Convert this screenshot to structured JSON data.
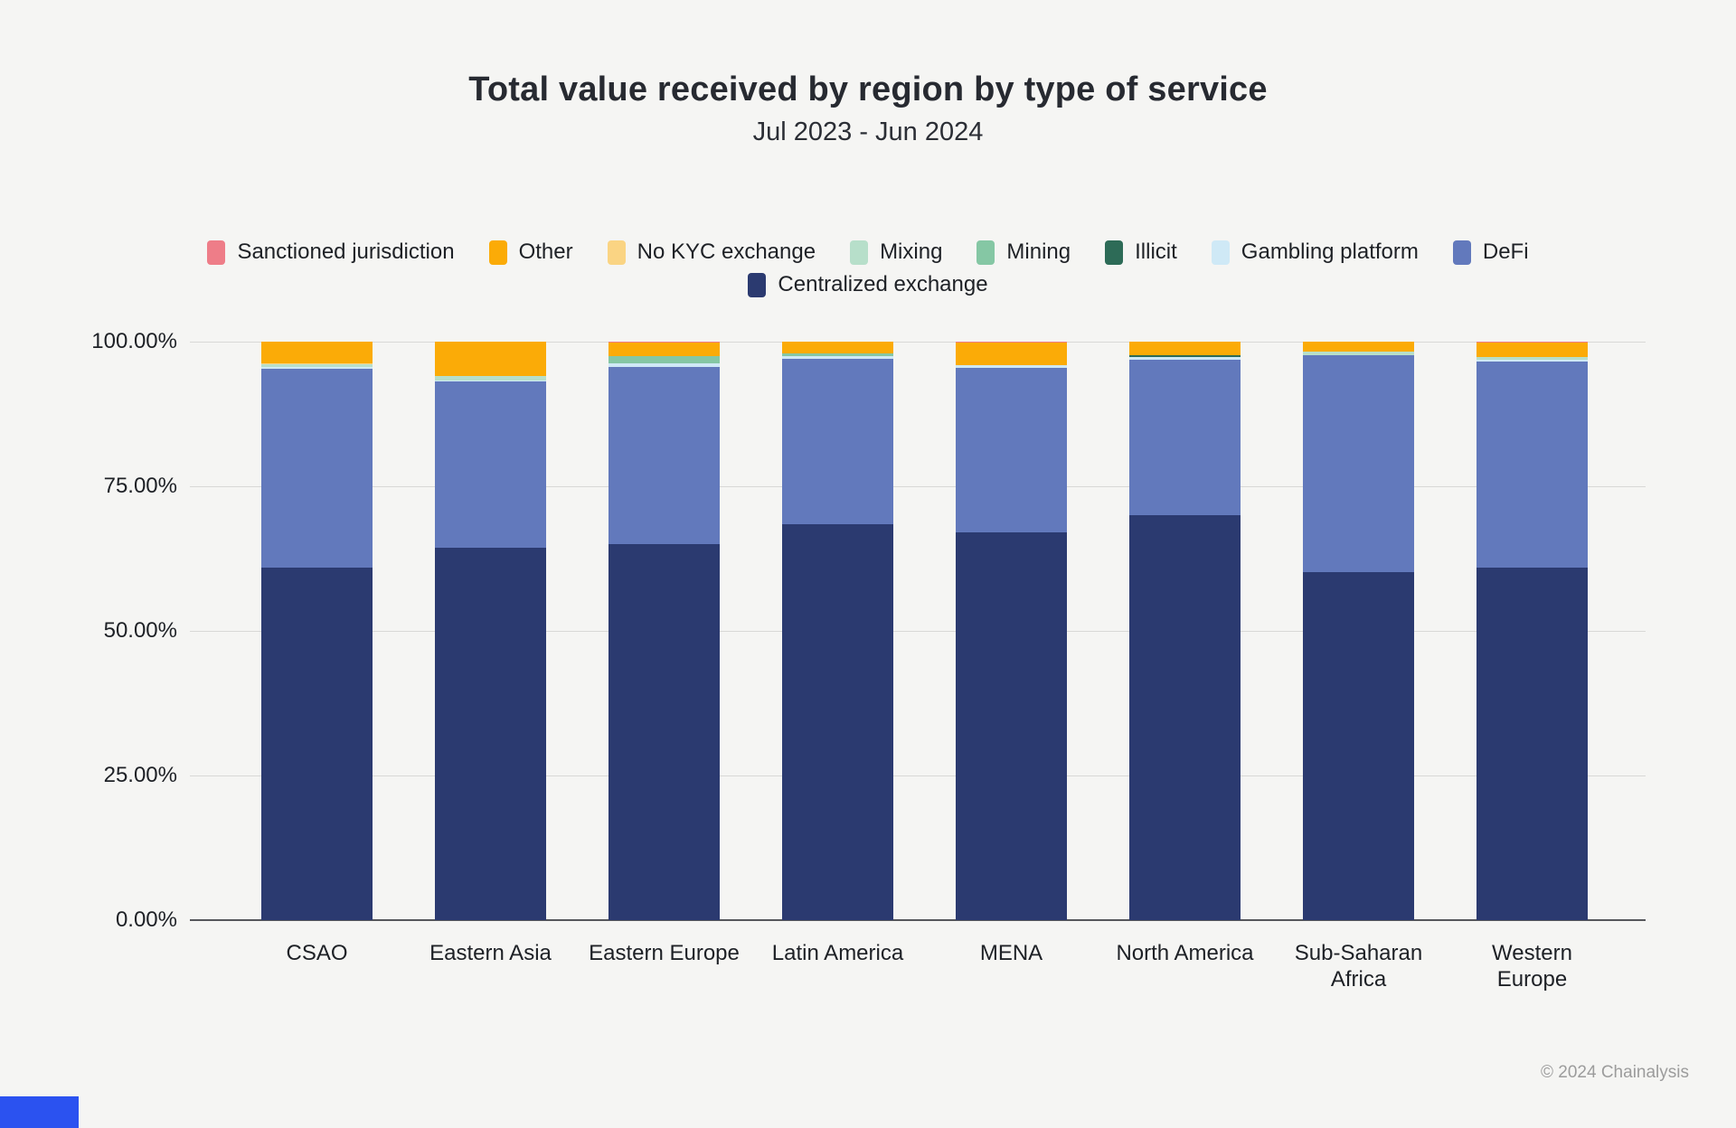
{
  "page": {
    "background_color": "#f5f5f3",
    "footer_credit": "© 2024 Chainalysis",
    "brand_block_color": "#2b52f0"
  },
  "chart_data": {
    "type": "bar",
    "subtype": "stacked-percent-bar",
    "title": "Total value received by region by type of service",
    "subtitle": "Jul 2023 - Jun 2024",
    "xlabel": "",
    "ylabel": "",
    "ylim": [
      0,
      100
    ],
    "grid": true,
    "legend_position": "top-center",
    "yticks": [
      {
        "label": "0.00%",
        "value": 0
      },
      {
        "label": "25.00%",
        "value": 25
      },
      {
        "label": "50.00%",
        "value": 50
      },
      {
        "label": "75.00%",
        "value": 75
      },
      {
        "label": "100.00%",
        "value": 100
      }
    ],
    "categories": [
      {
        "id": "csao",
        "label": "CSAO"
      },
      {
        "id": "eastern-asia",
        "label": "Eastern Asia"
      },
      {
        "id": "eastern-europe",
        "label": "Eastern Europe"
      },
      {
        "id": "latin-america",
        "label": "Latin America"
      },
      {
        "id": "mena",
        "label": "MENA"
      },
      {
        "id": "north-america",
        "label": "North America"
      },
      {
        "id": "sub-saharan-africa",
        "label": "Sub-Saharan\nAfrica"
      },
      {
        "id": "western-europe",
        "label": "Western\nEurope"
      }
    ],
    "series": [
      {
        "name": "Centralized exchange",
        "color": "#2b3a70",
        "values": [
          60.9,
          64.4,
          65.0,
          68.5,
          67.0,
          70.0,
          60.2,
          60.9
        ]
      },
      {
        "name": "DeFi",
        "color": "#6279bc",
        "values": [
          34.4,
          28.8,
          30.7,
          28.6,
          28.4,
          26.9,
          37.5,
          35.7
        ]
      },
      {
        "name": "Gambling platform",
        "color": "#cfe9f6",
        "values": [
          0.4,
          0.1,
          0.6,
          0.4,
          0.5,
          0.4,
          0.0,
          0.3
        ]
      },
      {
        "name": "Illicit",
        "color": "#2d6b57",
        "values": [
          0.0,
          0.0,
          0.0,
          0.0,
          0.0,
          0.3,
          0.0,
          0.0
        ]
      },
      {
        "name": "Mining",
        "color": "#85c7a4",
        "values": [
          0.0,
          0.0,
          1.2,
          0.5,
          0.0,
          0.0,
          0.0,
          0.0
        ]
      },
      {
        "name": "Mixing",
        "color": "#b7dfca",
        "values": [
          0.5,
          0.7,
          0.0,
          0.0,
          0.0,
          0.0,
          0.6,
          0.4
        ]
      },
      {
        "name": "No KYC exchange",
        "color": "#fad483",
        "values": [
          0.1,
          0.0,
          0.0,
          0.0,
          0.0,
          0.0,
          0.0,
          0.0
        ]
      },
      {
        "name": "Other",
        "color": "#fbab07",
        "values": [
          3.7,
          6.0,
          2.3,
          2.0,
          3.9,
          2.4,
          1.7,
          2.5
        ]
      },
      {
        "name": "Sanctioned jurisdiction",
        "color": "#ee7d88",
        "values": [
          0.0,
          0.0,
          0.2,
          0.0,
          0.2,
          0.0,
          0.0,
          0.2
        ]
      }
    ],
    "legend": {
      "row1": [
        "Sanctioned jurisdiction",
        "Other",
        "No KYC exchange",
        "Mixing",
        "Mining",
        "Illicit",
        "Gambling platform",
        "DeFi"
      ],
      "row2": [
        "Centralized exchange"
      ]
    }
  }
}
